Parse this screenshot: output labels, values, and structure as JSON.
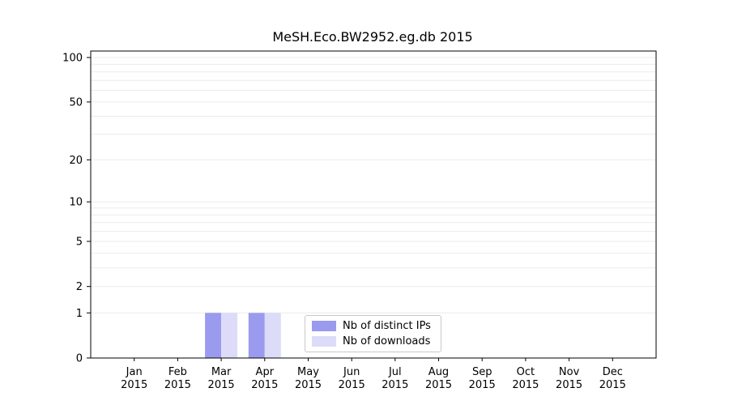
{
  "chart_data": {
    "type": "bar",
    "title": "MeSH.Eco.BW2952.eg.db 2015",
    "categories": [
      "Jan 2015",
      "Feb 2015",
      "Mar 2015",
      "Apr 2015",
      "May 2015",
      "Jun 2015",
      "Jul 2015",
      "Aug 2015",
      "Sep 2015",
      "Oct 2015",
      "Nov 2015",
      "Dec 2015"
    ],
    "series": [
      {
        "name": "Nb of distinct IPs",
        "color": "#9a9aee",
        "values": [
          0,
          0,
          1,
          1,
          0,
          0,
          0,
          0,
          0,
          0,
          0,
          0
        ]
      },
      {
        "name": "Nb of downloads",
        "color": "#dcdcf9",
        "values": [
          0,
          0,
          1,
          1,
          0,
          0,
          0,
          0,
          0,
          0,
          0,
          0
        ]
      }
    ],
    "xlabel": "",
    "ylabel": "",
    "yscale": "log(1+v)",
    "ytick_labels": [
      0,
      1,
      2,
      5,
      10,
      20,
      50,
      100
    ],
    "ylim": [
      0,
      100
    ],
    "grid": "horizontal-minor",
    "legend_position": "inside-bottom-center"
  }
}
